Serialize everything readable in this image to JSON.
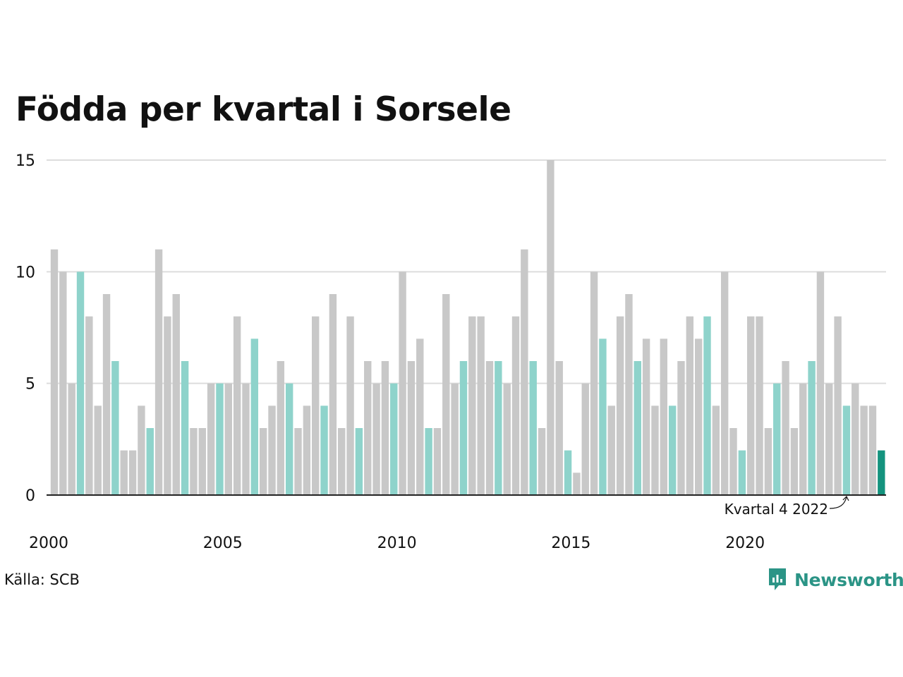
{
  "chart_data": {
    "type": "bar",
    "title": "Födda per kvartal i Sorsele",
    "source": "Källa: SCB",
    "brand": "Newsworthy",
    "annotation": "Kvartal 4 2022",
    "x_tick_labels": [
      "2000",
      "2005",
      "2010",
      "2015",
      "2020"
    ],
    "y_tick_labels": [
      "0",
      "5",
      "10",
      "15"
    ],
    "y_ticks": [
      0,
      5,
      10,
      15
    ],
    "ylim": [
      0,
      15
    ],
    "grid": true,
    "highlight_quarter": 4,
    "start_year": 2000,
    "end_year": 2023,
    "colors": {
      "default": "#c8c8c8",
      "quarter_highlight": "#8ed3cb",
      "latest": "#14937e",
      "grid": "#dddddd",
      "axis": "#222222",
      "brand": "#2b9486"
    },
    "values": [
      11,
      10,
      5,
      10,
      8,
      4,
      9,
      6,
      2,
      2,
      4,
      3,
      11,
      8,
      9,
      6,
      3,
      3,
      5,
      5,
      5,
      8,
      5,
      7,
      3,
      4,
      6,
      5,
      3,
      4,
      8,
      4,
      9,
      3,
      8,
      3,
      6,
      5,
      6,
      5,
      10,
      6,
      7,
      3,
      3,
      9,
      5,
      6,
      8,
      8,
      6,
      6,
      5,
      8,
      11,
      6,
      3,
      15,
      6,
      2,
      1,
      5,
      10,
      7,
      4,
      8,
      9,
      6,
      7,
      4,
      7,
      4,
      6,
      8,
      7,
      8,
      4,
      10,
      3,
      2,
      8,
      8,
      3,
      5,
      6,
      3,
      5,
      6,
      10,
      5,
      8,
      4,
      5,
      4,
      4,
      2
    ]
  }
}
